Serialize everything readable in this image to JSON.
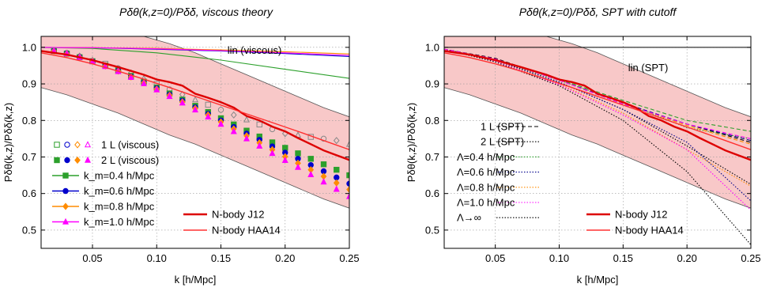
{
  "chart_data": [
    {
      "type": "line",
      "title": "Pδθ(k,z=0)/Pδδ, viscous theory",
      "xlabel": "k [h/Mpc]",
      "ylabel": "Pδθ(k,z)/Pδδ(k,z)",
      "xlim": [
        0.01,
        0.25
      ],
      "ylim": [
        0.45,
        1.03
      ],
      "xticks": [
        "0.05",
        "0.10",
        "0.15",
        "0.20",
        "0.25"
      ],
      "yticks": [
        "0.5",
        "0.6",
        "0.7",
        "0.8",
        "0.9",
        "1.0"
      ],
      "grid": true,
      "annotation": "lin (viscous)",
      "band": {
        "x": [
          0.01,
          0.03,
          0.05,
          0.07,
          0.09,
          0.11,
          0.13,
          0.15,
          0.17,
          0.19,
          0.21,
          0.23,
          0.25
        ],
        "upper": [
          1.03,
          1.03,
          1.03,
          1.03,
          1.03,
          1.01,
          0.985,
          0.955,
          0.925,
          0.895,
          0.865,
          0.835,
          0.81
        ],
        "lower": [
          0.89,
          0.87,
          0.845,
          0.82,
          0.79,
          0.76,
          0.735,
          0.705,
          0.675,
          0.645,
          0.615,
          0.585,
          0.56
        ]
      },
      "series": [
        {
          "name": "lin (viscous) 0.4",
          "style": "line",
          "color": "#2ca02c",
          "x": [
            0.01,
            0.05,
            0.1,
            0.15,
            0.2,
            0.25
          ],
          "y": [
            1.0,
            0.997,
            0.985,
            0.965,
            0.94,
            0.915
          ]
        },
        {
          "name": "lin (viscous) 0.6",
          "style": "line",
          "color": "#0000cc",
          "x": [
            0.01,
            0.05,
            0.1,
            0.15,
            0.2,
            0.25
          ],
          "y": [
            1.0,
            0.999,
            0.995,
            0.99,
            0.983,
            0.975
          ]
        },
        {
          "name": "lin (viscous) 0.8",
          "style": "line",
          "color": "#ff8c00",
          "x": [
            0.01,
            0.05,
            0.1,
            0.15,
            0.2,
            0.25
          ],
          "y": [
            1.0,
            0.999,
            0.997,
            0.993,
            0.988,
            0.982
          ]
        },
        {
          "name": "lin (viscous) 1.0",
          "style": "line",
          "color": "#ff00ff",
          "x": [
            0.01,
            0.05,
            0.1,
            0.15,
            0.2,
            0.25
          ],
          "y": [
            1.0,
            0.999,
            0.996,
            0.991,
            0.985,
            0.978
          ]
        },
        {
          "name": "1 L (viscous)",
          "style": "open",
          "color": "#888888",
          "x": [
            0.02,
            0.03,
            0.04,
            0.05,
            0.06,
            0.07,
            0.08,
            0.09,
            0.1,
            0.11,
            0.12,
            0.13,
            0.14,
            0.15,
            0.16,
            0.17,
            0.18,
            0.19,
            0.2,
            0.21,
            0.22,
            0.23,
            0.24,
            0.25
          ],
          "y": [
            0.991,
            0.985,
            0.976,
            0.965,
            0.955,
            0.943,
            0.93,
            0.915,
            0.9,
            0.885,
            0.871,
            0.857,
            0.843,
            0.829,
            0.815,
            0.802,
            0.789,
            0.776,
            0.764,
            0.76,
            0.755,
            0.75,
            0.745,
            0.735
          ]
        },
        {
          "name": "2 L (viscous) 0.4",
          "style": "square",
          "color": "#2ca02c",
          "x": [
            0.02,
            0.03,
            0.04,
            0.05,
            0.06,
            0.07,
            0.08,
            0.09,
            0.1,
            0.11,
            0.12,
            0.13,
            0.14,
            0.15,
            0.16,
            0.17,
            0.18,
            0.19,
            0.2,
            0.21,
            0.22,
            0.23,
            0.24,
            0.25
          ],
          "y": [
            0.99,
            0.983,
            0.973,
            0.962,
            0.95,
            0.937,
            0.922,
            0.906,
            0.89,
            0.874,
            0.857,
            0.84,
            0.823,
            0.806,
            0.789,
            0.772,
            0.756,
            0.74,
            0.725,
            0.71,
            0.695,
            0.68,
            0.665,
            0.65
          ]
        },
        {
          "name": "2 L (viscous) 0.6",
          "style": "circle",
          "color": "#0000cc",
          "x": [
            0.02,
            0.03,
            0.04,
            0.05,
            0.06,
            0.07,
            0.08,
            0.09,
            0.1,
            0.11,
            0.12,
            0.13,
            0.14,
            0.15,
            0.16,
            0.17,
            0.18,
            0.19,
            0.2,
            0.21,
            0.22,
            0.23,
            0.24,
            0.25
          ],
          "y": [
            0.99,
            0.983,
            0.973,
            0.962,
            0.95,
            0.936,
            0.92,
            0.904,
            0.888,
            0.871,
            0.854,
            0.836,
            0.818,
            0.8,
            0.782,
            0.764,
            0.747,
            0.729,
            0.712,
            0.695,
            0.678,
            0.661,
            0.644,
            0.627
          ]
        },
        {
          "name": "2 L (viscous) 0.8",
          "style": "diamond",
          "color": "#ff8c00",
          "x": [
            0.02,
            0.03,
            0.04,
            0.05,
            0.06,
            0.07,
            0.08,
            0.09,
            0.1,
            0.11,
            0.12,
            0.13,
            0.14,
            0.15,
            0.16,
            0.17,
            0.18,
            0.19,
            0.2,
            0.21,
            0.22,
            0.23,
            0.24,
            0.25
          ],
          "y": [
            0.99,
            0.983,
            0.973,
            0.962,
            0.949,
            0.935,
            0.919,
            0.903,
            0.886,
            0.869,
            0.851,
            0.833,
            0.815,
            0.796,
            0.777,
            0.758,
            0.739,
            0.72,
            0.701,
            0.683,
            0.665,
            0.647,
            0.629,
            0.611
          ]
        },
        {
          "name": "2 L (viscous) 1.0",
          "style": "triangle",
          "color": "#ff00ff",
          "x": [
            0.02,
            0.03,
            0.04,
            0.05,
            0.06,
            0.07,
            0.08,
            0.09,
            0.1,
            0.11,
            0.12,
            0.13,
            0.14,
            0.15,
            0.16,
            0.17,
            0.18,
            0.19,
            0.2,
            0.21,
            0.22,
            0.23,
            0.24,
            0.25
          ],
          "y": [
            0.99,
            0.983,
            0.973,
            0.961,
            0.948,
            0.934,
            0.918,
            0.901,
            0.884,
            0.866,
            0.848,
            0.829,
            0.81,
            0.79,
            0.77,
            0.75,
            0.73,
            0.71,
            0.691,
            0.672,
            0.652,
            0.632,
            0.612,
            0.592
          ]
        },
        {
          "name": "N-body J12",
          "style": "line",
          "width": 2.4,
          "color": "#dd0000",
          "x": [
            0.01,
            0.03,
            0.05,
            0.07,
            0.09,
            0.1,
            0.11,
            0.12,
            0.13,
            0.14,
            0.15,
            0.16,
            0.17,
            0.18,
            0.19,
            0.2,
            0.21,
            0.22,
            0.23,
            0.24,
            0.25
          ],
          "y": [
            0.99,
            0.98,
            0.965,
            0.946,
            0.925,
            0.912,
            0.905,
            0.895,
            0.873,
            0.862,
            0.85,
            0.835,
            0.812,
            0.8,
            0.783,
            0.77,
            0.752,
            0.735,
            0.718,
            0.705,
            0.692
          ]
        },
        {
          "name": "N-body HAA14",
          "style": "line",
          "width": 1.4,
          "color": "#ff3030",
          "x": [
            0.01,
            0.03,
            0.05,
            0.07,
            0.09,
            0.11,
            0.13,
            0.15,
            0.17,
            0.19,
            0.21,
            0.23,
            0.25
          ],
          "y": [
            0.985,
            0.972,
            0.955,
            0.935,
            0.913,
            0.89,
            0.866,
            0.842,
            0.818,
            0.794,
            0.77,
            0.745,
            0.72
          ]
        }
      ],
      "legend": [
        {
          "label": "1 L (viscous)",
          "markers": [
            "open-square",
            "open-circle",
            "open-diamond",
            "open-triangle"
          ]
        },
        {
          "label": "2 L (viscous)",
          "markers": [
            "square",
            "circle",
            "diamond",
            "triangle"
          ]
        },
        {
          "label": "k_m=0.4 h/Mpc",
          "color": "#2ca02c",
          "marker": "square"
        },
        {
          "label": "k_m=0.6 h/Mpc",
          "color": "#0000cc",
          "marker": "circle"
        },
        {
          "label": "k_m=0.8 h/Mpc",
          "color": "#ff8c00",
          "marker": "diamond"
        },
        {
          "label": "k_m=1.0 h/Mpc",
          "color": "#ff00ff",
          "marker": "triangle"
        },
        {
          "label": "N-body J12",
          "color": "#dd0000"
        },
        {
          "label": "N-body HAA14",
          "color": "#ff3030"
        }
      ]
    },
    {
      "type": "line",
      "title": "Pδθ(k,z=0)/Pδδ, SPT with cutoff",
      "xlabel": "k [h/Mpc]",
      "ylabel": "Pδθ(k,z)/Pδδ(k,z)",
      "xlim": [
        0.01,
        0.25
      ],
      "ylim": [
        0.45,
        1.03
      ],
      "xticks": [
        "0.05",
        "0.10",
        "0.15",
        "0.20",
        "0.25"
      ],
      "yticks": [
        "0.5",
        "0.6",
        "0.7",
        "0.8",
        "0.9",
        "1.0"
      ],
      "grid": true,
      "annotation": "lin (SPT)",
      "band": {
        "x": [
          0.01,
          0.03,
          0.05,
          0.07,
          0.09,
          0.11,
          0.13,
          0.15,
          0.17,
          0.19,
          0.21,
          0.23,
          0.25
        ],
        "upper": [
          1.03,
          1.03,
          1.03,
          1.03,
          1.03,
          1.01,
          0.985,
          0.955,
          0.925,
          0.895,
          0.865,
          0.835,
          0.81
        ],
        "lower": [
          0.89,
          0.87,
          0.845,
          0.82,
          0.79,
          0.76,
          0.735,
          0.705,
          0.675,
          0.645,
          0.615,
          0.585,
          0.56
        ]
      },
      "series": [
        {
          "name": "lin (SPT)",
          "style": "line",
          "width": 1,
          "color": "#000000",
          "x": [
            0.01,
            0.25
          ],
          "y": [
            1.0,
            1.0
          ]
        },
        {
          "name": "1 L (SPT)",
          "style": "dashed",
          "color": "#000000",
          "x": [
            0.01,
            0.05,
            0.1,
            0.15,
            0.2,
            0.25
          ],
          "y": [
            0.995,
            0.97,
            0.91,
            0.845,
            0.79,
            0.74
          ]
        },
        {
          "name": "2 L (SPT)",
          "style": "dotted",
          "color": "#000000",
          "x": [
            0.01,
            0.05,
            0.1,
            0.15,
            0.2,
            0.25
          ],
          "y": [
            0.995,
            0.965,
            0.905,
            0.83,
            0.73,
            0.625
          ]
        },
        {
          "name": "Λ=0.4 h/Mpc",
          "style": "dotted",
          "color": "#2ca02c",
          "x": [
            0.01,
            0.05,
            0.1,
            0.15,
            0.2,
            0.25
          ],
          "y": [
            0.995,
            0.966,
            0.91,
            0.85,
            0.78,
            0.75
          ]
        },
        {
          "name": "Λ=0.6 h/Mpc",
          "style": "dotted",
          "color": "#00008b",
          "x": [
            0.01,
            0.05,
            0.1,
            0.15,
            0.2,
            0.25
          ],
          "y": [
            0.995,
            0.964,
            0.905,
            0.83,
            0.74,
            0.58
          ]
        },
        {
          "name": "Λ=0.8 h/Mpc",
          "style": "dotted",
          "color": "#ff8c00",
          "x": [
            0.01,
            0.05,
            0.1,
            0.15,
            0.2,
            0.25
          ],
          "y": [
            0.995,
            0.963,
            0.9,
            0.82,
            0.72,
            0.62
          ]
        },
        {
          "name": "Λ=1.0 h/Mpc",
          "style": "dotted",
          "color": "#ff00ff",
          "x": [
            0.01,
            0.05,
            0.1,
            0.15,
            0.2,
            0.25
          ],
          "y": [
            0.995,
            0.962,
            0.898,
            0.815,
            0.72,
            0.555
          ]
        },
        {
          "name": "Λ→∞",
          "style": "dotted",
          "color": "#000000",
          "x": [
            0.01,
            0.05,
            0.1,
            0.15,
            0.2,
            0.25
          ],
          "y": [
            0.995,
            0.96,
            0.895,
            0.8,
            0.66,
            0.46
          ]
        },
        {
          "name": "1 L Λ=0.4",
          "style": "dashed",
          "color": "#2ca02c",
          "x": [
            0.01,
            0.05,
            0.1,
            0.15,
            0.2,
            0.25
          ],
          "y": [
            0.995,
            0.968,
            0.912,
            0.855,
            0.8,
            0.77
          ]
        },
        {
          "name": "1 L Λ=0.6",
          "style": "dashed",
          "color": "#00008b",
          "x": [
            0.01,
            0.05,
            0.1,
            0.15,
            0.2,
            0.25
          ],
          "y": [
            0.995,
            0.968,
            0.91,
            0.848,
            0.79,
            0.745
          ]
        },
        {
          "name": "1 L Λ=0.8",
          "style": "dashed",
          "color": "#ff8c00",
          "x": [
            0.01,
            0.05,
            0.1,
            0.15,
            0.2,
            0.25
          ],
          "y": [
            0.995,
            0.968,
            0.91,
            0.846,
            0.786,
            0.735
          ]
        },
        {
          "name": "1 L Λ=1.0",
          "style": "dashed",
          "color": "#ff00ff",
          "x": [
            0.01,
            0.05,
            0.1,
            0.15,
            0.2,
            0.25
          ],
          "y": [
            0.995,
            0.968,
            0.91,
            0.845,
            0.79,
            0.75
          ]
        },
        {
          "name": "N-body J12",
          "style": "line",
          "width": 2.4,
          "color": "#dd0000",
          "x": [
            0.01,
            0.03,
            0.05,
            0.07,
            0.09,
            0.1,
            0.11,
            0.12,
            0.13,
            0.14,
            0.15,
            0.16,
            0.17,
            0.18,
            0.19,
            0.2,
            0.21,
            0.22,
            0.23,
            0.24,
            0.25
          ],
          "y": [
            0.99,
            0.98,
            0.965,
            0.946,
            0.925,
            0.912,
            0.905,
            0.895,
            0.873,
            0.862,
            0.85,
            0.835,
            0.812,
            0.8,
            0.783,
            0.77,
            0.752,
            0.735,
            0.718,
            0.705,
            0.692
          ]
        },
        {
          "name": "N-body HAA14",
          "style": "line",
          "width": 1.4,
          "color": "#ff3030",
          "x": [
            0.01,
            0.03,
            0.05,
            0.07,
            0.09,
            0.11,
            0.13,
            0.15,
            0.17,
            0.19,
            0.21,
            0.23,
            0.25
          ],
          "y": [
            0.985,
            0.972,
            0.955,
            0.935,
            0.913,
            0.89,
            0.866,
            0.842,
            0.818,
            0.794,
            0.77,
            0.745,
            0.72
          ]
        }
      ],
      "legend": [
        {
          "label": "1 L (SPT)",
          "color": "#000000",
          "dash": "dashed"
        },
        {
          "label": "2 L (SPT)",
          "color": "#000000",
          "dash": "dotted"
        },
        {
          "label": "Λ=0.4 h/Mpc",
          "color": "#2ca02c",
          "dash": "dotted"
        },
        {
          "label": "Λ=0.6 h/Mpc",
          "color": "#00008b",
          "dash": "dotted"
        },
        {
          "label": "Λ=0.8 h/Mpc",
          "color": "#ff8c00",
          "dash": "dotted"
        },
        {
          "label": "Λ=1.0 h/Mpc",
          "color": "#ff00ff",
          "dash": "dotted"
        },
        {
          "label": "Λ→∞",
          "color": "#000000",
          "dash": "dotted"
        },
        {
          "label": "N-body J12",
          "color": "#dd0000"
        },
        {
          "label": "N-body HAA14",
          "color": "#ff3030"
        }
      ]
    }
  ],
  "band_color": "#f8c8c8",
  "band_edge_color": "#555555"
}
